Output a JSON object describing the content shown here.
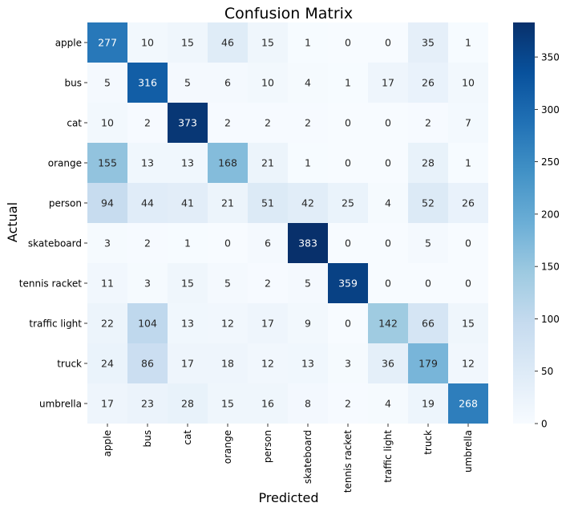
{
  "chart_data": {
    "type": "heatmap",
    "title": "Confusion Matrix",
    "xlabel": "Predicted",
    "ylabel": "Actual",
    "row_labels": [
      "apple",
      "bus",
      "cat",
      "orange",
      "person",
      "skateboard",
      "tennis racket",
      "traffic light",
      "truck",
      "umbrella"
    ],
    "col_labels": [
      "apple",
      "bus",
      "cat",
      "orange",
      "person",
      "skateboard",
      "tennis racket",
      "traffic light",
      "truck",
      "umbrella"
    ],
    "values": [
      [
        277,
        10,
        15,
        46,
        15,
        1,
        0,
        0,
        35,
        1
      ],
      [
        5,
        316,
        5,
        6,
        10,
        4,
        1,
        17,
        26,
        10
      ],
      [
        10,
        2,
        373,
        2,
        2,
        2,
        0,
        0,
        2,
        7
      ],
      [
        155,
        13,
        13,
        168,
        21,
        1,
        0,
        0,
        28,
        1
      ],
      [
        94,
        44,
        41,
        21,
        51,
        42,
        25,
        4,
        52,
        26
      ],
      [
        3,
        2,
        1,
        0,
        6,
        383,
        0,
        0,
        5,
        0
      ],
      [
        11,
        3,
        15,
        5,
        2,
        5,
        359,
        0,
        0,
        0
      ],
      [
        22,
        104,
        13,
        12,
        17,
        9,
        0,
        142,
        66,
        15
      ],
      [
        24,
        86,
        17,
        18,
        12,
        13,
        3,
        36,
        179,
        12
      ],
      [
        17,
        23,
        28,
        15,
        16,
        8,
        2,
        4,
        19,
        268
      ]
    ],
    "colormap": "Blues",
    "vmin": 0,
    "vmax": 383,
    "colorbar_ticks": [
      0,
      50,
      100,
      150,
      200,
      250,
      300,
      350
    ],
    "colors": {
      "low": "#f7fbff",
      "high": "#08306b",
      "text_dark": "#262626",
      "text_light": "#ffffff"
    }
  }
}
